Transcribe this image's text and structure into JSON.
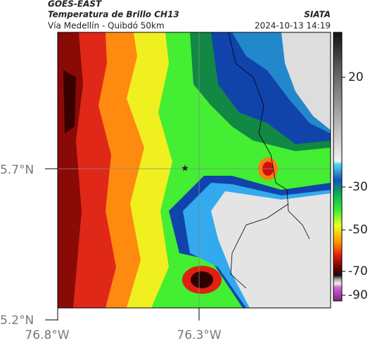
{
  "header": {
    "agency": "GOES-EAST",
    "title": "Temperatura de Brillo CH13",
    "subtitle": "Vía Medellín - Quibdó 50km",
    "org": "SIATA",
    "datetime": "2024-10-13 14:19"
  },
  "map": {
    "lat_labels": [
      "5.7°N",
      "5.2°N"
    ],
    "lon_labels": [
      "76.8°W",
      "76.3°W"
    ]
  },
  "colorbar": {
    "ticks": [
      20,
      -30,
      -50,
      -70,
      -90
    ]
  }
}
